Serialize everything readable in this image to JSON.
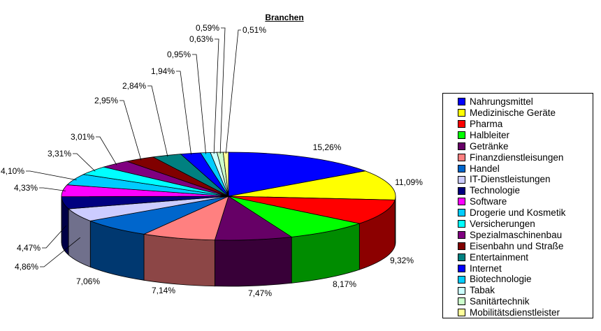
{
  "chart_data": {
    "type": "pie",
    "title": "Branchen",
    "legend_position": "right",
    "slices": [
      {
        "label": "Nahrungsmittel",
        "value": 15.26,
        "value_label": "15,26%",
        "color": "#0000FF"
      },
      {
        "label": "Medizinische Geräte",
        "value": 11.09,
        "value_label": "11,09%",
        "color": "#FFFF00"
      },
      {
        "label": "Pharma",
        "value": 9.32,
        "value_label": "9,32%",
        "color": "#FF0000"
      },
      {
        "label": "Halbleiter",
        "value": 8.17,
        "value_label": "8,17%",
        "color": "#00FF00"
      },
      {
        "label": "Getränke",
        "value": 7.47,
        "value_label": "7,47%",
        "color": "#660066"
      },
      {
        "label": "Finanzdienstleisungen",
        "value": 7.14,
        "value_label": "7,14%",
        "color": "#FF8080"
      },
      {
        "label": "Handel",
        "value": 7.06,
        "value_label": "7,06%",
        "color": "#0066CC"
      },
      {
        "label": "IT-Dienstleistungen",
        "value": 4.86,
        "value_label": "4,86%",
        "color": "#CCCCFF"
      },
      {
        "label": "Technologie",
        "value": 4.47,
        "value_label": "4,47%",
        "color": "#000080"
      },
      {
        "label": "Software",
        "value": 4.33,
        "value_label": "4,33%",
        "color": "#FF00FF"
      },
      {
        "label": "Drogerie und Kosmetik",
        "value": 4.1,
        "value_label": "4,10%",
        "color": "#00CCFF"
      },
      {
        "label": "Versicherungen",
        "value": 3.31,
        "value_label": "3,31%",
        "color": "#00FFFF"
      },
      {
        "label": "Spezialmaschinenbau",
        "value": 3.01,
        "value_label": "3,01%",
        "color": "#800080"
      },
      {
        "label": "Eisenbahn und Straße",
        "value": 2.95,
        "value_label": "2,95%",
        "color": "#800000"
      },
      {
        "label": "Entertainment",
        "value": 2.84,
        "value_label": "2,84%",
        "color": "#008080"
      },
      {
        "label": "Internet",
        "value": 1.94,
        "value_label": "1,94%",
        "color": "#0000FF"
      },
      {
        "label": "Biotechnologie",
        "value": 0.95,
        "value_label": "0,95%",
        "color": "#00CCFF"
      },
      {
        "label": "Tabak",
        "value": 0.63,
        "value_label": "0,63%",
        "color": "#CCFFFF"
      },
      {
        "label": "Sanitärtechnik",
        "value": 0.59,
        "value_label": "0,59%",
        "color": "#CCFFCC"
      },
      {
        "label": "Mobilitätsdienstleister",
        "value": 0.51,
        "value_label": "0,51%",
        "color": "#FFFF99"
      }
    ]
  }
}
